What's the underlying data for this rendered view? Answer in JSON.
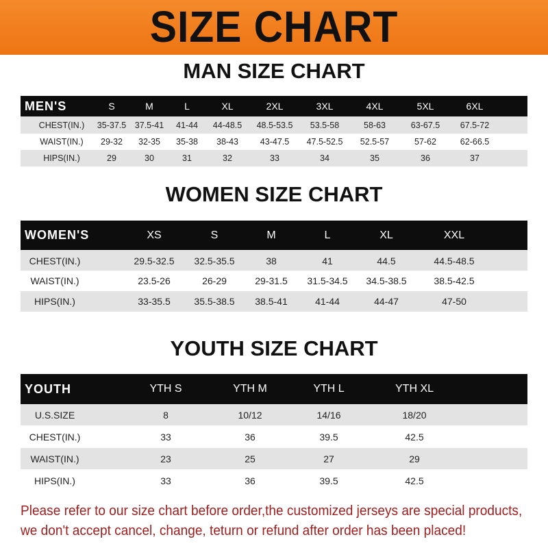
{
  "banner": {
    "title": "SIZE CHART",
    "color": "#f07a1a"
  },
  "men": {
    "title": "MAN SIZE CHART",
    "header": [
      "MEN'S",
      "S",
      "M",
      "L",
      "XL",
      "2XL",
      "3XL",
      "4XL",
      "5XL",
      "6XL"
    ],
    "rows": [
      [
        "CHEST(IN.)",
        "35-37.5",
        "37.5-41",
        "41-44",
        "44-48.5",
        "48.5-53.5",
        "53.5-58",
        "58-63",
        "63-67.5",
        "67.5-72"
      ],
      [
        "WAIST(IN.)",
        "29-32",
        "32-35",
        "35-38",
        "38-43",
        "43-47.5",
        "47.5-52.5",
        "52.5-57",
        "57-62",
        "62-66.5"
      ],
      [
        "HIPS(IN.)",
        "29",
        "30",
        "31",
        "32",
        "33",
        "34",
        "35",
        "36",
        "37"
      ]
    ]
  },
  "women": {
    "title": "WOMEN SIZE CHART",
    "header": [
      "WOMEN'S",
      "XS",
      "S",
      "M",
      "L",
      "XL",
      "XXL"
    ],
    "rows": [
      [
        "CHEST(IN.)",
        "29.5-32.5",
        "32.5-35.5",
        "38",
        "41",
        "44.5",
        "44.5-48.5"
      ],
      [
        "WAIST(IN.)",
        "23.5-26",
        "26-29",
        "29-31.5",
        "31.5-34.5",
        "34.5-38.5",
        "38.5-42.5"
      ],
      [
        "HIPS(IN.)",
        "33-35.5",
        "35.5-38.5",
        "38.5-41",
        "41-44",
        "44-47",
        "47-50"
      ]
    ]
  },
  "youth": {
    "title": "YOUTH SIZE CHART",
    "header": [
      "YOUTH",
      "YTH S",
      "YTH M",
      "YTH L",
      "YTH XL"
    ],
    "rows": [
      [
        "U.S.SIZE",
        "8",
        "10/12",
        "14/16",
        "18/20"
      ],
      [
        "CHEST(IN.)",
        "33",
        "36",
        "39.5",
        "42.5"
      ],
      [
        "WAIST(IN.)",
        "23",
        "25",
        "27",
        "29"
      ],
      [
        "HIPS(IN.)",
        "33",
        "36",
        "39.5",
        "42.5"
      ]
    ]
  },
  "notice": {
    "line1": "Please refer to our size chart before order,the customized jerseys are special products,",
    "line2": "we don't accept cancel, change, teturn or refund after order has been placed!",
    "color": "#9e1c1c"
  }
}
